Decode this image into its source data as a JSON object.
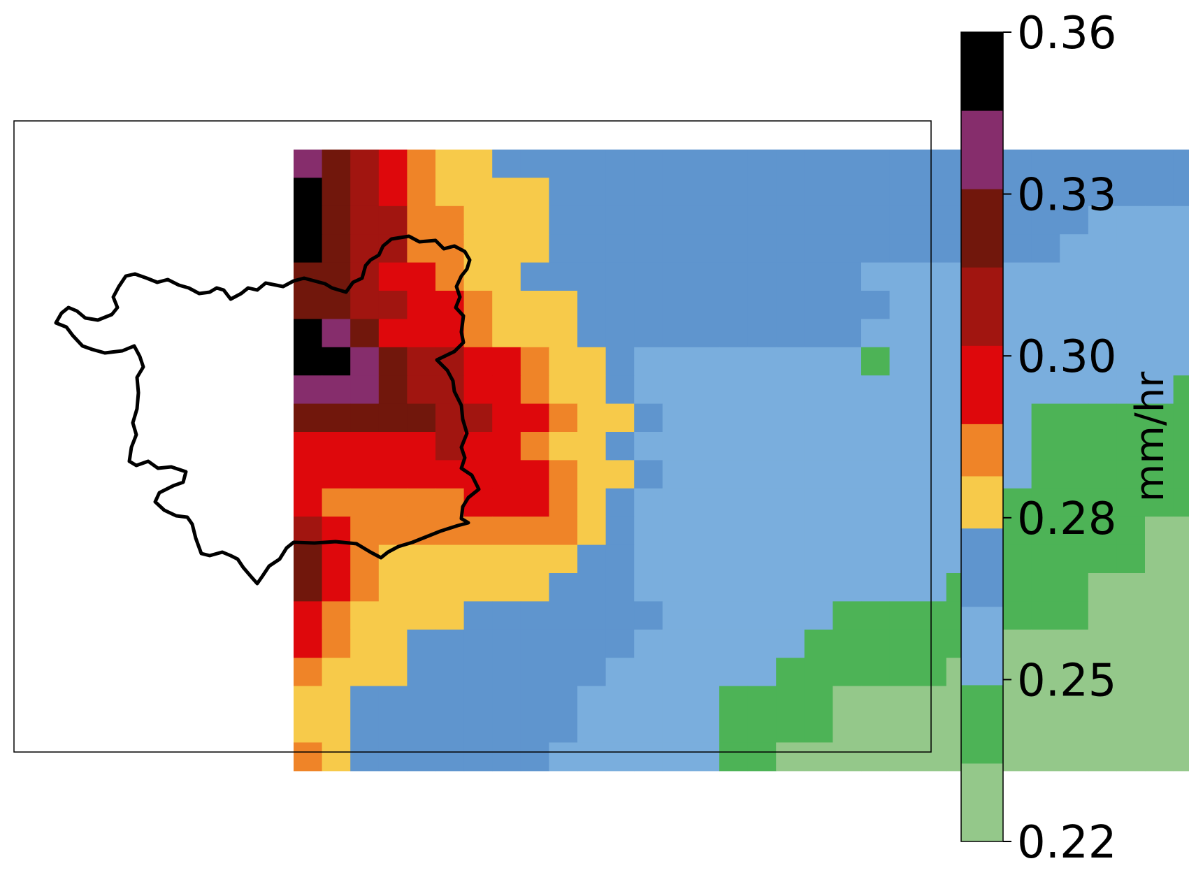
{
  "chart_data": {
    "type": "heatmap",
    "colorbar": {
      "label": "mm/hr",
      "ticks": [
        "0.22",
        "0.25",
        "0.28",
        "0.30",
        "0.33",
        "0.36"
      ],
      "bins": [
        {
          "min": 0.22,
          "max": 0.235,
          "color": "#94c88a"
        },
        {
          "min": 0.235,
          "max": 0.25,
          "color": "#4db356"
        },
        {
          "min": 0.25,
          "max": 0.265,
          "color": "#7aaedd"
        },
        {
          "min": 0.265,
          "max": 0.28,
          "color": "#5f95ce"
        },
        {
          "min": 0.28,
          "max": 0.29,
          "color": "#f7ca4a"
        },
        {
          "min": 0.29,
          "max": 0.3,
          "color": "#ef8428"
        },
        {
          "min": 0.3,
          "max": 0.315,
          "color": "#de080c"
        },
        {
          "min": 0.315,
          "max": 0.33,
          "color": "#a11510"
        },
        {
          "min": 0.33,
          "max": 0.345,
          "color": "#71170c"
        },
        {
          "min": 0.345,
          "max": 0.36,
          "color": "#862d6c"
        },
        {
          "min": 0.36,
          "max": 0.375,
          "color": "#000000"
        }
      ]
    },
    "grid_rows": [
      "9876544333333333333333334333333334",
      "X87654444333333333333333333333332233",
      "X87755444333333333333333333322222",
      "X87755444333333333333333333222222",
      "8876654433333333333322222222222222",
      "8877665444333333333332222222222222",
      "X986665444333333333322222222222222",
      "XX9877665443222222221222222222222",
      "9998776654432222222222222222222112",
      "888887766544322222222222221111111",
      "66666766544322222222222222111111111",
      "6666666665443222222222222211111111",
      "6555556665432222222222221111111111",
      "7655555555432222222222221111110000",
      "8654444444332222222222221111110001",
      "8654444443332222222222211111000000",
      "6544443333333222222111111111000000",
      "6544333333332222221111111000000000",
      "5444333333322222211111100000000000",
      "4433333333222221111000000000000000",
      "4433333333222221111000000000000000",
      "5433333332222221100000000000000000"
    ]
  }
}
